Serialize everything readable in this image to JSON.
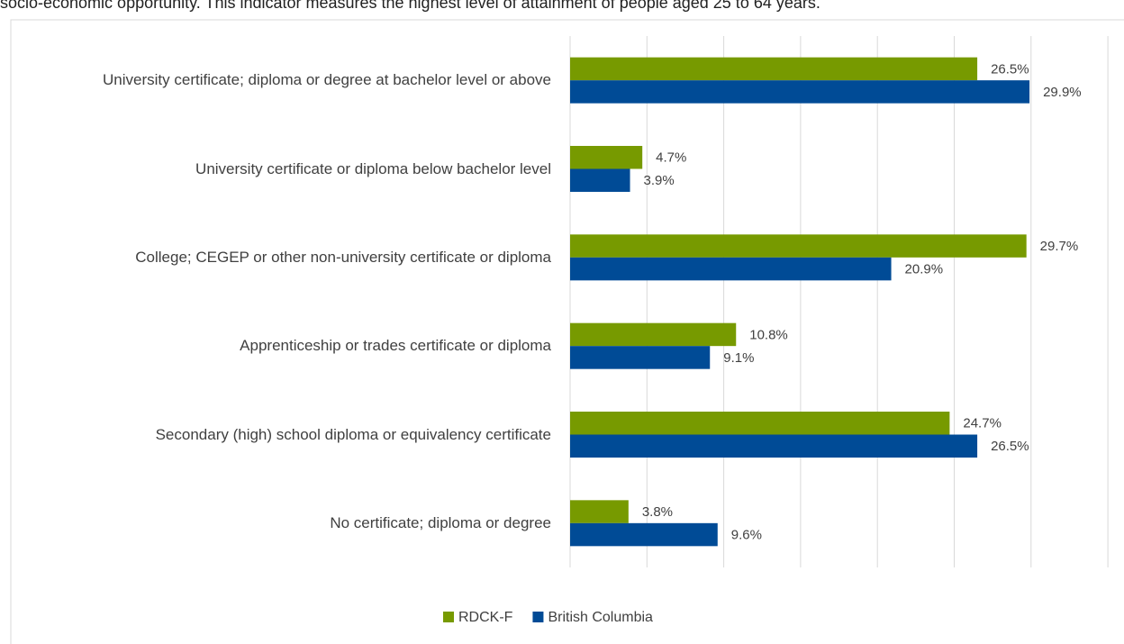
{
  "page_text": "socio-economic opportunity. This indicator measures the highest level of attainment of people aged 25 to 64 years.",
  "chart_data": {
    "type": "bar",
    "orientation": "horizontal",
    "categories": [
      "University certificate; diploma or degree at bachelor level or above",
      "University certificate or diploma below bachelor level",
      "College; CEGEP or other non-university certificate or diploma",
      "Apprenticeship or trades certificate or diploma",
      "Secondary (high) school diploma or equivalency certificate",
      "No certificate; diploma or degree"
    ],
    "series": [
      {
        "name": "RDCK-F",
        "color": "#779a00",
        "values": [
          26.5,
          4.7,
          29.7,
          10.8,
          24.7,
          3.8
        ],
        "value_labels": [
          "26.5%",
          "4.7%",
          "29.7%",
          "10.8%",
          "24.7%",
          "3.8%"
        ]
      },
      {
        "name": "British Columbia",
        "color": "#004b96",
        "values": [
          29.9,
          3.9,
          20.9,
          9.1,
          26.5,
          9.6
        ],
        "value_labels": [
          "29.9%",
          "3.9%",
          "20.9%",
          "9.1%",
          "26.5%",
          "9.6%"
        ]
      }
    ],
    "xlim": [
      0,
      35
    ],
    "xticks": [
      0,
      5,
      10,
      15,
      20,
      25,
      30,
      35
    ],
    "grid": true,
    "legend": "bottom"
  }
}
